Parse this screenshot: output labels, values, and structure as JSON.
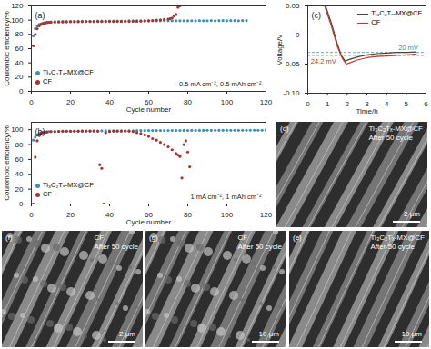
{
  "chart_data": [
    {
      "type": "scatter",
      "panel_label": "(a)",
      "x_label": "Cycle number",
      "y_label": "Coulombic efficiency/%",
      "xlim": [
        0,
        120
      ],
      "xticks": [
        0,
        20,
        40,
        60,
        80,
        100,
        120
      ],
      "ylim": [
        0,
        120
      ],
      "yticks": [
        0,
        20,
        40,
        60,
        80,
        100,
        120
      ],
      "grid": false,
      "legend": "bottom-left",
      "marker": "circle",
      "annotations": [
        {
          "text": "0.5 mA cm⁻², 0.5 mAh cm⁻²"
        }
      ],
      "series": [
        {
          "name": "Ti₃C₂Tₓ-MX@CF",
          "color": "#3d8eb9",
          "x": [
            1,
            2,
            3,
            4,
            5,
            6,
            7,
            8,
            9,
            10,
            12,
            14,
            16,
            18,
            20,
            22,
            24,
            26,
            28,
            30,
            32,
            34,
            36,
            38,
            40,
            42,
            44,
            46,
            48,
            50,
            52,
            54,
            56,
            58,
            60,
            62,
            64,
            66,
            68,
            70,
            72,
            74,
            76,
            78,
            80,
            82,
            84,
            86,
            88,
            90,
            92,
            94,
            96,
            98,
            100,
            102,
            104,
            106,
            108,
            110
          ],
          "values": [
            78,
            88,
            92,
            94,
            95,
            96,
            96.5,
            97,
            97,
            97.5,
            97.8,
            98,
            98.1,
            98.2,
            98.3,
            98.3,
            98.4,
            98.5,
            98.5,
            98.6,
            98.6,
            98.7,
            98.7,
            98.8,
            98.8,
            98.8,
            98.9,
            98.9,
            98.9,
            99,
            99,
            99,
            99.1,
            99,
            99.1,
            99.1,
            99,
            99.1,
            99.2,
            99.1,
            99.2,
            99.1,
            99.2,
            99.2,
            99.1,
            99.2,
            99.2,
            99.3,
            99.2,
            99.2,
            99.3,
            99.2,
            99.3,
            99.3,
            99.2,
            99.3,
            99.3,
            99.2,
            99.3,
            99.3
          ]
        },
        {
          "name": "CF",
          "color": "#a8322d",
          "x": [
            1,
            2,
            3,
            4,
            5,
            6,
            7,
            8,
            9,
            10,
            12,
            14,
            16,
            18,
            20,
            22,
            24,
            26,
            28,
            30,
            32,
            34,
            36,
            38,
            40,
            42,
            44,
            46,
            48,
            50,
            52,
            54,
            56,
            58,
            60,
            62,
            64,
            66,
            68,
            70,
            71,
            72,
            73,
            74,
            75,
            76
          ],
          "values": [
            64,
            80,
            88,
            92,
            94,
            95,
            96,
            96.5,
            97,
            97,
            97.2,
            97.4,
            97.5,
            97.6,
            97.7,
            97.8,
            97.8,
            97.9,
            98,
            98,
            98,
            98.1,
            98,
            98.1,
            98.2,
            98,
            98.2,
            98.1,
            98.3,
            98.2,
            98.3,
            98.4,
            98.5,
            98.8,
            99,
            99.5,
            100,
            100.5,
            101,
            101.5,
            102,
            103,
            106,
            108,
            118,
            120
          ]
        }
      ]
    },
    {
      "type": "scatter",
      "panel_label": "(b)",
      "x_label": "Cycle number",
      "y_label": "Coulombic efficiency/%",
      "xlim": [
        0,
        120
      ],
      "xticks": [
        0,
        20,
        40,
        60,
        80,
        100,
        120
      ],
      "ylim": [
        0,
        110
      ],
      "yticks": [
        0,
        20,
        40,
        60,
        80,
        100
      ],
      "grid": false,
      "legend": "bottom-left",
      "marker": "circle",
      "annotations": [
        {
          "text": "1 mA cm⁻², 1 mAh cm⁻²"
        }
      ],
      "series": [
        {
          "name": "Ti₃C₂Tₓ-MX@CF",
          "color": "#3d8eb9",
          "x": [
            1,
            2,
            3,
            4,
            5,
            6,
            7,
            8,
            9,
            10,
            12,
            14,
            16,
            18,
            20,
            22,
            24,
            26,
            28,
            30,
            32,
            34,
            36,
            38,
            40,
            42,
            44,
            46,
            48,
            50,
            52,
            54,
            56,
            58,
            60,
            62,
            64,
            66,
            68,
            70,
            72,
            74,
            76,
            78,
            80,
            82,
            84,
            86,
            88,
            90,
            92,
            94,
            96,
            98,
            100,
            102,
            104,
            106,
            108,
            110,
            112,
            114,
            116,
            118,
            120
          ],
          "values": [
            86,
            90,
            93,
            95,
            96,
            96.5,
            97,
            97,
            97.5,
            97.5,
            97.7,
            97.8,
            97.9,
            98,
            98,
            98.1,
            98.2,
            98.2,
            98.3,
            98.3,
            98.4,
            98.4,
            98.5,
            98.5,
            98.5,
            98.6,
            98.6,
            98.6,
            98.7,
            98.7,
            98.7,
            98.8,
            98.8,
            98.8,
            98.9,
            98.9,
            98.9,
            98.9,
            99,
            99,
            99,
            99,
            99,
            99.1,
            99,
            99.1,
            99.1,
            99.1,
            99.1,
            99.2,
            99.1,
            99.2,
            99.2,
            99.2,
            99.2,
            99.2,
            99.3,
            99.2,
            99.3,
            99.3,
            99.3,
            99.3,
            99.3,
            99.3,
            99.4
          ]
        },
        {
          "name": "CF",
          "color": "#a8322d",
          "x": [
            1,
            2,
            3,
            4,
            5,
            6,
            7,
            8,
            10,
            12,
            14,
            16,
            18,
            20,
            22,
            24,
            26,
            28,
            30,
            32,
            34,
            35,
            36,
            37,
            38,
            40,
            42,
            44,
            46,
            48,
            50,
            52,
            54,
            56,
            58,
            60,
            62,
            64,
            66,
            68,
            70,
            72,
            74,
            75,
            76,
            77,
            78,
            79,
            80,
            81
          ],
          "values": [
            0,
            63,
            85,
            92,
            95,
            96,
            96.5,
            97,
            97.5,
            97.5,
            97.8,
            98,
            98,
            98,
            98.1,
            98,
            98.2,
            98.1,
            98.2,
            98.2,
            98,
            53,
            48,
            0,
            96,
            97.5,
            98,
            98,
            98,
            98.1,
            98,
            97.5,
            96,
            95,
            93,
            91,
            88,
            86,
            83,
            80,
            77,
            73,
            68,
            66,
            64,
            35,
            80,
            85,
            70,
            50
          ]
        }
      ]
    },
    {
      "type": "line",
      "panel_label": "(c)",
      "x_label": "Time/h",
      "y_label": "Voltage/V",
      "xlim": [
        0,
        6
      ],
      "xticks": [
        0,
        1,
        2,
        3,
        4,
        5,
        6
      ],
      "ylim": [
        -0.1,
        0.05
      ],
      "yticks": [
        {
          "value": -0.1,
          "label": "-0.10"
        },
        -0.05,
        0,
        0.05
      ],
      "grid": false,
      "legend": "top-right",
      "line_style": "solid",
      "reference_lines": [
        {
          "value": -0.03,
          "color": "#2a9d9d"
        },
        {
          "value": -0.035,
          "color": "#c0392b"
        }
      ],
      "annotations": [
        {
          "text": "20 mV",
          "x": 4.6,
          "y": -0.022,
          "color": "#2a9d9d"
        },
        {
          "text": "24.2 mV",
          "x": 0.15,
          "y": -0.045,
          "color": "#c0392b"
        }
      ],
      "series": [
        {
          "name": "Ti₃C₂Tₓ-MX@CF",
          "color": "#444444",
          "x": [
            0.9,
            1.2,
            1.5,
            1.7,
            1.9,
            2.1,
            2.5,
            3,
            3.5,
            4,
            4.5,
            5,
            5.5
          ],
          "values": [
            0.05,
            0.02,
            -0.015,
            -0.035,
            -0.045,
            -0.042,
            -0.038,
            -0.034,
            -0.032,
            -0.031,
            -0.03,
            -0.03,
            -0.029
          ]
        },
        {
          "name": "CF",
          "color": "#c0392b",
          "x": [
            0.85,
            1.2,
            1.5,
            1.75,
            1.95,
            2.2,
            2.5,
            3,
            3.5,
            4,
            4.5,
            5,
            5.5
          ],
          "values": [
            0.05,
            0.015,
            -0.02,
            -0.04,
            -0.05,
            -0.047,
            -0.043,
            -0.039,
            -0.037,
            -0.036,
            -0.035,
            -0.034,
            -0.033
          ]
        }
      ]
    }
  ],
  "images": [
    {
      "panel_label": "(d)",
      "caption": [
        "Ti₃C₂Tₓ-MX@CF",
        "After 50 cycle"
      ],
      "scale_bar": "2 μm"
    },
    {
      "panel_label": "(f)",
      "caption": [
        "CF",
        "After 50 cycle"
      ],
      "scale_bar": "2 μm"
    },
    {
      "panel_label": "(g)",
      "caption": [
        "CF",
        "After 50 cycle"
      ],
      "scale_bar": "10 μm"
    },
    {
      "panel_label": "(e)",
      "caption": [
        "Ti₃C₂Tₓ-MX@CF",
        "After 50 cycle"
      ],
      "scale_bar": "10 μm"
    }
  ]
}
